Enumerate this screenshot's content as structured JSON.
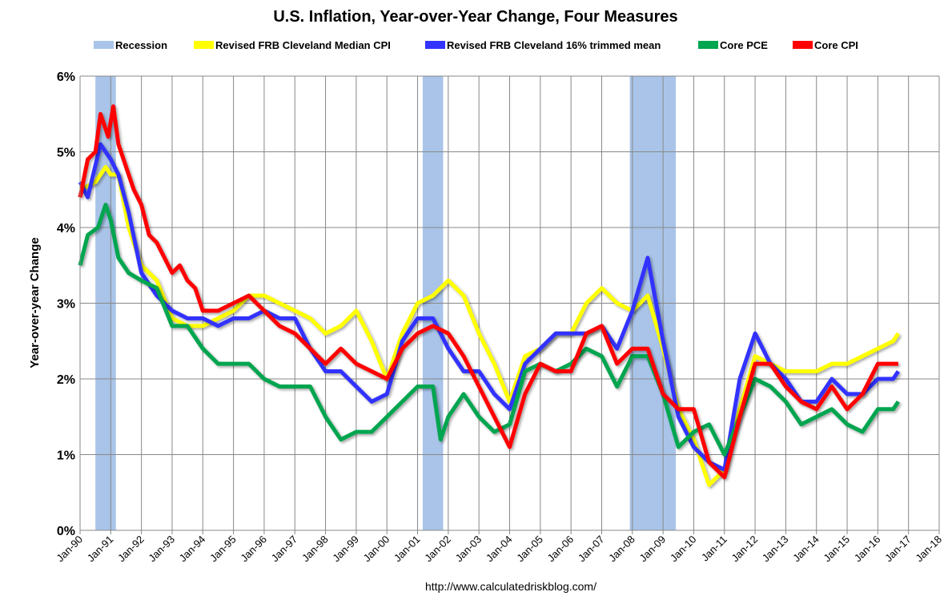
{
  "chart_data": {
    "type": "line",
    "title": "U.S. Inflation, Year-over-Year Change, Four Measures",
    "ylabel": "Year-over-year Change",
    "xlabel": "",
    "source": "http://www.calculatedriskblog.com/",
    "ylim": [
      0,
      6
    ],
    "yticks": [
      "0%",
      "1%",
      "2%",
      "3%",
      "4%",
      "5%",
      "6%"
    ],
    "xlim": [
      "1990-01",
      "2018-01"
    ],
    "xticks": [
      "Jan-90",
      "Jan-91",
      "Jan-92",
      "Jan-93",
      "Jan-94",
      "Jan-95",
      "Jan-96",
      "Jan-97",
      "Jan-98",
      "Jan-99",
      "Jan-00",
      "Jan-01",
      "Jan-02",
      "Jan-03",
      "Jan-04",
      "Jan-05",
      "Jan-06",
      "Jan-07",
      "Jan-08",
      "Jan-09",
      "Jan-10",
      "Jan-11",
      "Jan-12",
      "Jan-13",
      "Jan-14",
      "Jan-15",
      "Jan-16",
      "Jan-17",
      "Jan-18"
    ],
    "grid": true,
    "legend_position": "top",
    "recession_label": "Recession",
    "recession_color": "#a9c4e8",
    "recessions": [
      [
        "1990-07",
        "1991-03"
      ],
      [
        "2001-03",
        "2001-11"
      ],
      [
        "2007-12",
        "2009-06"
      ]
    ],
    "series": [
      {
        "name": "Revised FRB Cleveland Median CPI",
        "color": "#ffff00",
        "points": [
          [
            "1990-01",
            4.5
          ],
          [
            "1990-07",
            4.6
          ],
          [
            "1990-11",
            4.8
          ],
          [
            "1991-01",
            4.7
          ],
          [
            "1991-04",
            4.7
          ],
          [
            "1991-08",
            4.0
          ],
          [
            "1992-01",
            3.5
          ],
          [
            "1992-07",
            3.3
          ],
          [
            "1993-01",
            2.8
          ],
          [
            "1993-07",
            2.7
          ],
          [
            "1994-01",
            2.7
          ],
          [
            "1994-07",
            2.8
          ],
          [
            "1995-01",
            2.9
          ],
          [
            "1995-07",
            3.1
          ],
          [
            "1996-01",
            3.1
          ],
          [
            "1996-07",
            3.0
          ],
          [
            "1997-01",
            2.9
          ],
          [
            "1997-07",
            2.8
          ],
          [
            "1998-01",
            2.6
          ],
          [
            "1998-07",
            2.7
          ],
          [
            "1999-01",
            2.9
          ],
          [
            "1999-07",
            2.5
          ],
          [
            "2000-01",
            2.0
          ],
          [
            "2000-07",
            2.6
          ],
          [
            "2001-01",
            3.0
          ],
          [
            "2001-07",
            3.1
          ],
          [
            "2002-01",
            3.3
          ],
          [
            "2002-07",
            3.1
          ],
          [
            "2003-01",
            2.6
          ],
          [
            "2003-07",
            2.2
          ],
          [
            "2004-01",
            1.7
          ],
          [
            "2004-07",
            2.3
          ],
          [
            "2005-01",
            2.4
          ],
          [
            "2005-07",
            2.6
          ],
          [
            "2006-01",
            2.6
          ],
          [
            "2006-07",
            3.0
          ],
          [
            "2007-01",
            3.2
          ],
          [
            "2007-07",
            3.0
          ],
          [
            "2008-01",
            2.9
          ],
          [
            "2008-07",
            3.1
          ],
          [
            "2009-01",
            2.4
          ],
          [
            "2009-07",
            1.6
          ],
          [
            "2010-01",
            1.2
          ],
          [
            "2010-07",
            0.6
          ],
          [
            "2011-01",
            0.8
          ],
          [
            "2011-07",
            1.6
          ],
          [
            "2012-01",
            2.3
          ],
          [
            "2012-07",
            2.2
          ],
          [
            "2013-01",
            2.1
          ],
          [
            "2013-07",
            2.1
          ],
          [
            "2014-01",
            2.1
          ],
          [
            "2014-07",
            2.2
          ],
          [
            "2015-01",
            2.2
          ],
          [
            "2015-07",
            2.3
          ],
          [
            "2016-01",
            2.4
          ],
          [
            "2016-07",
            2.5
          ],
          [
            "2016-09",
            2.6
          ]
        ]
      },
      {
        "name": "Revised FRB Cleveland 16% trimmed mean",
        "color": "#3333ff",
        "points": [
          [
            "1990-01",
            4.6
          ],
          [
            "1990-04",
            4.4
          ],
          [
            "1990-09",
            5.1
          ],
          [
            "1991-01",
            4.9
          ],
          [
            "1991-04",
            4.7
          ],
          [
            "1991-08",
            4.2
          ],
          [
            "1992-01",
            3.4
          ],
          [
            "1992-07",
            3.1
          ],
          [
            "1993-01",
            2.9
          ],
          [
            "1993-07",
            2.8
          ],
          [
            "1994-01",
            2.8
          ],
          [
            "1994-07",
            2.7
          ],
          [
            "1995-01",
            2.8
          ],
          [
            "1995-07",
            2.8
          ],
          [
            "1996-01",
            2.9
          ],
          [
            "1996-07",
            2.8
          ],
          [
            "1997-01",
            2.8
          ],
          [
            "1997-07",
            2.4
          ],
          [
            "1998-01",
            2.1
          ],
          [
            "1998-07",
            2.1
          ],
          [
            "1999-01",
            1.9
          ],
          [
            "1999-07",
            1.7
          ],
          [
            "2000-01",
            1.8
          ],
          [
            "2000-07",
            2.5
          ],
          [
            "2001-01",
            2.8
          ],
          [
            "2001-07",
            2.8
          ],
          [
            "2002-01",
            2.4
          ],
          [
            "2002-07",
            2.1
          ],
          [
            "2003-01",
            2.1
          ],
          [
            "2003-07",
            1.8
          ],
          [
            "2004-01",
            1.6
          ],
          [
            "2004-07",
            2.2
          ],
          [
            "2005-01",
            2.4
          ],
          [
            "2005-07",
            2.6
          ],
          [
            "2006-01",
            2.6
          ],
          [
            "2006-07",
            2.6
          ],
          [
            "2007-01",
            2.7
          ],
          [
            "2007-07",
            2.4
          ],
          [
            "2008-01",
            2.9
          ],
          [
            "2008-07",
            3.6
          ],
          [
            "2009-01",
            2.5
          ],
          [
            "2009-07",
            1.5
          ],
          [
            "2010-01",
            1.1
          ],
          [
            "2010-07",
            0.9
          ],
          [
            "2011-01",
            0.8
          ],
          [
            "2011-07",
            2.0
          ],
          [
            "2012-01",
            2.6
          ],
          [
            "2012-07",
            2.2
          ],
          [
            "2013-01",
            2.0
          ],
          [
            "2013-07",
            1.7
          ],
          [
            "2014-01",
            1.7
          ],
          [
            "2014-07",
            2.0
          ],
          [
            "2015-01",
            1.8
          ],
          [
            "2015-07",
            1.8
          ],
          [
            "2016-01",
            2.0
          ],
          [
            "2016-07",
            2.0
          ],
          [
            "2016-09",
            2.1
          ]
        ]
      },
      {
        "name": "Core PCE",
        "color": "#00a550",
        "points": [
          [
            "1990-01",
            3.5
          ],
          [
            "1990-04",
            3.9
          ],
          [
            "1990-08",
            4.0
          ],
          [
            "1990-11",
            4.3
          ],
          [
            "1991-01",
            4.1
          ],
          [
            "1991-04",
            3.6
          ],
          [
            "1991-08",
            3.4
          ],
          [
            "1992-01",
            3.3
          ],
          [
            "1992-07",
            3.2
          ],
          [
            "1993-01",
            2.7
          ],
          [
            "1993-07",
            2.7
          ],
          [
            "1994-01",
            2.4
          ],
          [
            "1994-07",
            2.2
          ],
          [
            "1995-01",
            2.2
          ],
          [
            "1995-07",
            2.2
          ],
          [
            "1996-01",
            2.0
          ],
          [
            "1996-07",
            1.9
          ],
          [
            "1997-01",
            1.9
          ],
          [
            "1997-07",
            1.9
          ],
          [
            "1998-01",
            1.5
          ],
          [
            "1998-07",
            1.2
          ],
          [
            "1999-01",
            1.3
          ],
          [
            "1999-07",
            1.3
          ],
          [
            "2000-01",
            1.5
          ],
          [
            "2000-07",
            1.7
          ],
          [
            "2001-01",
            1.9
          ],
          [
            "2001-07",
            1.9
          ],
          [
            "2001-10",
            1.2
          ],
          [
            "2002-01",
            1.5
          ],
          [
            "2002-07",
            1.8
          ],
          [
            "2003-01",
            1.5
          ],
          [
            "2003-07",
            1.3
          ],
          [
            "2004-01",
            1.4
          ],
          [
            "2004-07",
            2.1
          ],
          [
            "2005-01",
            2.2
          ],
          [
            "2005-07",
            2.1
          ],
          [
            "2006-01",
            2.2
          ],
          [
            "2006-07",
            2.4
          ],
          [
            "2007-01",
            2.3
          ],
          [
            "2007-07",
            1.9
          ],
          [
            "2008-01",
            2.3
          ],
          [
            "2008-07",
            2.3
          ],
          [
            "2009-01",
            1.8
          ],
          [
            "2009-07",
            1.1
          ],
          [
            "2010-01",
            1.3
          ],
          [
            "2010-07",
            1.4
          ],
          [
            "2011-01",
            1.0
          ],
          [
            "2011-07",
            1.5
          ],
          [
            "2012-01",
            2.0
          ],
          [
            "2012-07",
            1.9
          ],
          [
            "2013-01",
            1.7
          ],
          [
            "2013-07",
            1.4
          ],
          [
            "2014-01",
            1.5
          ],
          [
            "2014-07",
            1.6
          ],
          [
            "2015-01",
            1.4
          ],
          [
            "2015-07",
            1.3
          ],
          [
            "2016-01",
            1.6
          ],
          [
            "2016-07",
            1.6
          ],
          [
            "2016-09",
            1.7
          ]
        ]
      },
      {
        "name": "Core CPI",
        "color": "#ff0000",
        "points": [
          [
            "1990-01",
            4.4
          ],
          [
            "1990-04",
            4.9
          ],
          [
            "1990-07",
            5.0
          ],
          [
            "1990-09",
            5.5
          ],
          [
            "1990-12",
            5.2
          ],
          [
            "1991-02",
            5.6
          ],
          [
            "1991-04",
            5.1
          ],
          [
            "1991-07",
            4.8
          ],
          [
            "1991-10",
            4.5
          ],
          [
            "1992-01",
            4.3
          ],
          [
            "1992-04",
            3.9
          ],
          [
            "1992-07",
            3.8
          ],
          [
            "1992-10",
            3.6
          ],
          [
            "1993-01",
            3.4
          ],
          [
            "1993-04",
            3.5
          ],
          [
            "1993-07",
            3.3
          ],
          [
            "1993-10",
            3.2
          ],
          [
            "1994-01",
            2.9
          ],
          [
            "1994-07",
            2.9
          ],
          [
            "1995-01",
            3.0
          ],
          [
            "1995-07",
            3.1
          ],
          [
            "1996-01",
            2.9
          ],
          [
            "1996-07",
            2.7
          ],
          [
            "1997-01",
            2.6
          ],
          [
            "1997-07",
            2.4
          ],
          [
            "1998-01",
            2.2
          ],
          [
            "1998-07",
            2.4
          ],
          [
            "1999-01",
            2.2
          ],
          [
            "1999-07",
            2.1
          ],
          [
            "2000-01",
            2.0
          ],
          [
            "2000-07",
            2.4
          ],
          [
            "2001-01",
            2.6
          ],
          [
            "2001-07",
            2.7
          ],
          [
            "2002-01",
            2.6
          ],
          [
            "2002-07",
            2.3
          ],
          [
            "2003-01",
            1.9
          ],
          [
            "2003-07",
            1.5
          ],
          [
            "2004-01",
            1.1
          ],
          [
            "2004-07",
            1.8
          ],
          [
            "2005-01",
            2.2
          ],
          [
            "2005-07",
            2.1
          ],
          [
            "2006-01",
            2.1
          ],
          [
            "2006-07",
            2.6
          ],
          [
            "2007-01",
            2.7
          ],
          [
            "2007-07",
            2.2
          ],
          [
            "2008-01",
            2.4
          ],
          [
            "2008-07",
            2.4
          ],
          [
            "2009-01",
            1.8
          ],
          [
            "2009-07",
            1.6
          ],
          [
            "2010-01",
            1.6
          ],
          [
            "2010-07",
            0.9
          ],
          [
            "2011-01",
            0.7
          ],
          [
            "2011-07",
            1.5
          ],
          [
            "2012-01",
            2.2
          ],
          [
            "2012-07",
            2.2
          ],
          [
            "2013-01",
            1.9
          ],
          [
            "2013-07",
            1.7
          ],
          [
            "2014-01",
            1.6
          ],
          [
            "2014-07",
            1.9
          ],
          [
            "2015-01",
            1.6
          ],
          [
            "2015-07",
            1.8
          ],
          [
            "2016-01",
            2.2
          ],
          [
            "2016-07",
            2.2
          ],
          [
            "2016-09",
            2.2
          ]
        ]
      }
    ]
  }
}
